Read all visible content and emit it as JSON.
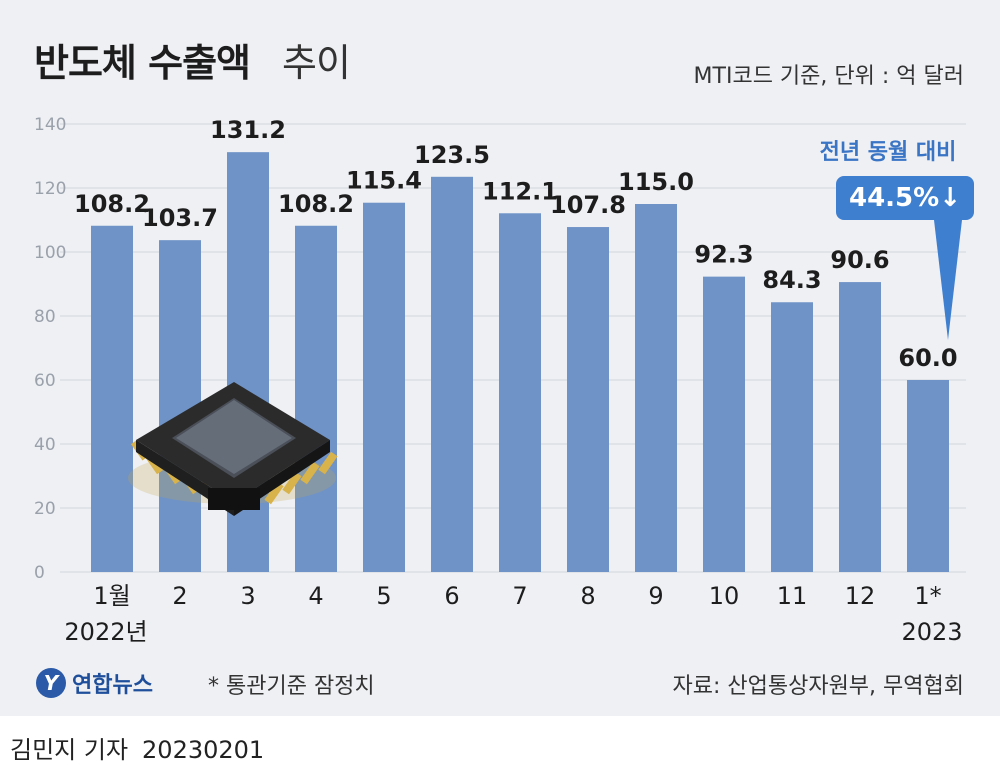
{
  "title_bold": "반도체 수출액",
  "title_light": "추이",
  "unit_note": "MTI코드 기준, 단위 : 억 달러",
  "yoy": {
    "label": "전년 동월 대비",
    "value": "44.5%↓"
  },
  "footnote": "* 통관기준 잠정치",
  "source": "자료: 산업통상자원부, 무역협회",
  "logo_text": "연합뉴스",
  "logo_mark": "Y",
  "byline": {
    "reporter": "김민지 기자",
    "date": "20230201"
  },
  "colors": {
    "bar": "#6f93c7",
    "background": "#eef0f4",
    "badge": "#3f7fd0"
  },
  "icons": [
    "semiconductor-chip-icon",
    "yonhap-logo-icon",
    "down-arrow-icon"
  ],
  "chart_data": {
    "type": "bar",
    "categories": [
      "1월",
      "2",
      "3",
      "4",
      "5",
      "6",
      "7",
      "8",
      "9",
      "10",
      "11",
      "12",
      "1*"
    ],
    "values": [
      108.2,
      103.7,
      131.2,
      108.2,
      115.4,
      123.5,
      112.1,
      107.8,
      115.0,
      92.3,
      84.3,
      90.6,
      60.0
    ],
    "value_labels": [
      "108.2",
      "103.7",
      "131.2",
      "108.2",
      "115.4",
      "123.5",
      "112.1",
      "107.8",
      "115.0",
      "92.3",
      "84.3",
      "90.6",
      "60.0"
    ],
    "year_labels": {
      "first": "2022년",
      "last": "2023"
    },
    "yticks": [
      "0",
      "20",
      "40",
      "60",
      "80",
      "100",
      "120",
      "140"
    ],
    "ylim": [
      0,
      140
    ],
    "grid": true,
    "title": "반도체 수출액 추이",
    "xlabel": "",
    "ylabel": ""
  }
}
